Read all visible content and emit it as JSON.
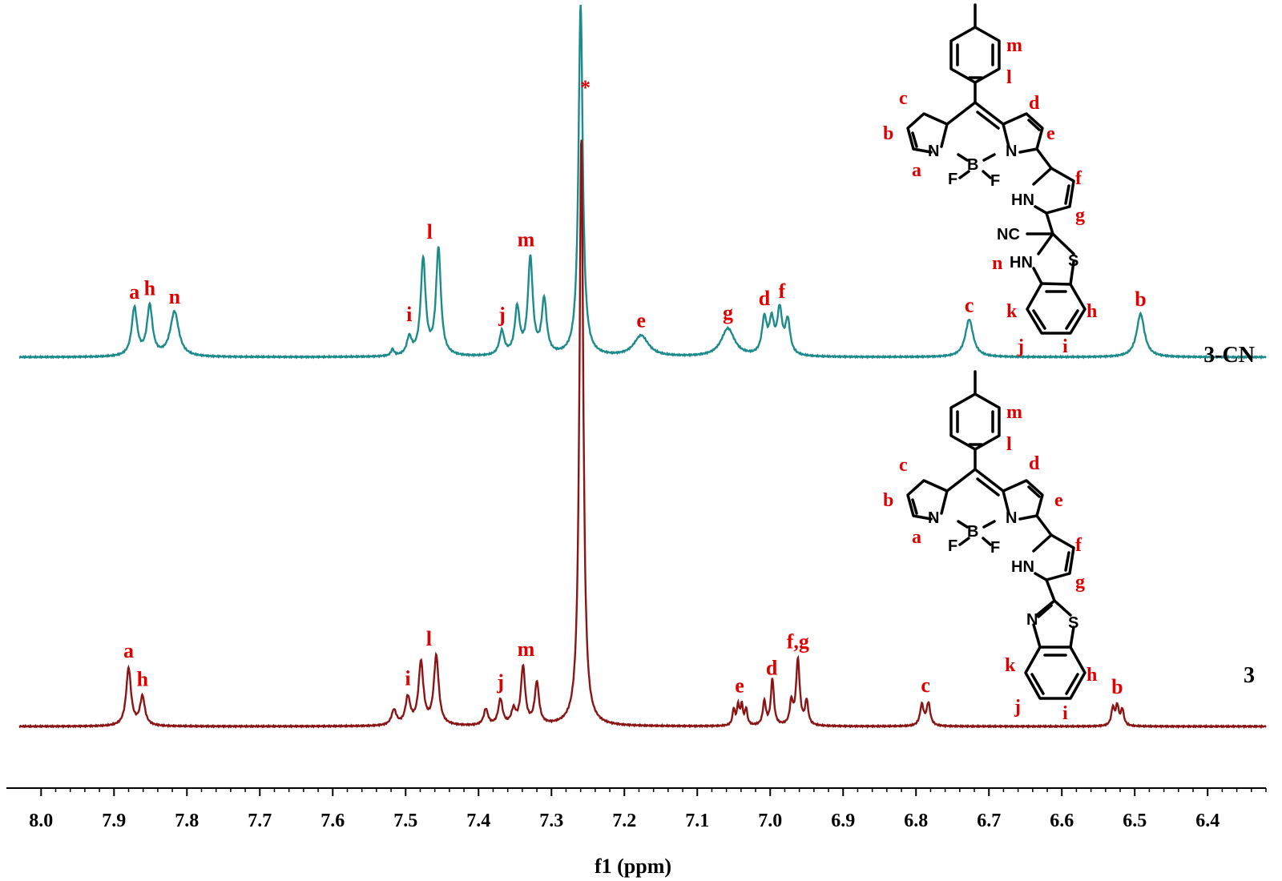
{
  "chart_data": {
    "type": "line",
    "title": "",
    "xlabel": "f1 (ppm)",
    "ylabel": "",
    "xlim": [
      8.03,
      6.32
    ],
    "x_reversed": true,
    "x_ticks": [
      "8.0",
      "7.9",
      "7.8",
      "7.7",
      "7.6",
      "7.5",
      "7.4",
      "7.3",
      "7.2",
      "7.1",
      "7.0",
      "6.9",
      "6.8",
      "6.7",
      "6.6",
      "6.5",
      "6.4"
    ],
    "y_axis_shown": false,
    "grid": false,
    "series": [
      {
        "name": "3-CN",
        "color": "#1d8b8b",
        "peaks": [
          {
            "ppm": 7.872,
            "h": 60,
            "w": 0.0045
          },
          {
            "ppm": 7.851,
            "h": 62,
            "w": 0.0045
          },
          {
            "ppm": 7.817,
            "h": 56,
            "w": 0.007
          },
          {
            "ppm": 7.518,
            "h": 8,
            "w": 0.0025
          },
          {
            "ppm": 7.495,
            "h": 22,
            "w": 0.004
          },
          {
            "ppm": 7.476,
            "h": 120,
            "w": 0.004
          },
          {
            "ppm": 7.455,
            "h": 133,
            "w": 0.004
          },
          {
            "ppm": 7.368,
            "h": 30,
            "w": 0.004
          },
          {
            "ppm": 7.347,
            "h": 58,
            "w": 0.004
          },
          {
            "ppm": 7.329,
            "h": 120,
            "w": 0.004
          },
          {
            "ppm": 7.31,
            "h": 68,
            "w": 0.004
          },
          {
            "ppm": 7.26,
            "h": 440,
            "w": 0.0035
          },
          {
            "ppm": 7.177,
            "h": 26,
            "w": 0.012
          },
          {
            "ppm": 7.058,
            "h": 35,
            "w": 0.011
          },
          {
            "ppm": 7.008,
            "h": 44,
            "w": 0.004
          },
          {
            "ppm": 6.998,
            "h": 40,
            "w": 0.004
          },
          {
            "ppm": 6.987,
            "h": 54,
            "w": 0.004
          },
          {
            "ppm": 6.976,
            "h": 42,
            "w": 0.004
          },
          {
            "ppm": 6.727,
            "h": 47,
            "w": 0.0065
          },
          {
            "ppm": 6.492,
            "h": 54,
            "w": 0.0065
          }
        ],
        "peak_labels": [
          {
            "ppm": 7.872,
            "text": "a"
          },
          {
            "ppm": 7.851,
            "text": "h"
          },
          {
            "ppm": 7.817,
            "text": "n"
          },
          {
            "ppm": 7.495,
            "text": "i"
          },
          {
            "ppm": 7.467,
            "text": "l"
          },
          {
            "ppm": 7.368,
            "text": "j"
          },
          {
            "ppm": 7.335,
            "text": "m"
          },
          {
            "ppm": 7.177,
            "text": "e"
          },
          {
            "ppm": 7.058,
            "text": "g"
          },
          {
            "ppm": 7.008,
            "text": "d"
          },
          {
            "ppm": 6.984,
            "text": "f"
          },
          {
            "ppm": 6.727,
            "text": "c"
          },
          {
            "ppm": 6.492,
            "text": "b"
          }
        ]
      },
      {
        "name": "3",
        "color": "#8b1414",
        "peaks": [
          {
            "ppm": 7.88,
            "h": 72,
            "w": 0.004
          },
          {
            "ppm": 7.861,
            "h": 36,
            "w": 0.004
          },
          {
            "ppm": 7.516,
            "h": 19,
            "w": 0.004
          },
          {
            "ppm": 7.497,
            "h": 34,
            "w": 0.004
          },
          {
            "ppm": 7.479,
            "h": 78,
            "w": 0.004
          },
          {
            "ppm": 7.458,
            "h": 86,
            "w": 0.004
          },
          {
            "ppm": 7.39,
            "h": 20,
            "w": 0.0035
          },
          {
            "ppm": 7.37,
            "h": 32,
            "w": 0.0035
          },
          {
            "ppm": 7.352,
            "h": 18,
            "w": 0.0035
          },
          {
            "ppm": 7.339,
            "h": 72,
            "w": 0.0035
          },
          {
            "ppm": 7.32,
            "h": 52,
            "w": 0.0035
          },
          {
            "ppm": 7.259,
            "h": 735,
            "w": 0.0032
          },
          {
            "ppm": 7.05,
            "h": 20,
            "w": 0.002
          },
          {
            "ppm": 7.044,
            "h": 24,
            "w": 0.002
          },
          {
            "ppm": 7.039,
            "h": 24,
            "w": 0.002
          },
          {
            "ppm": 7.033,
            "h": 20,
            "w": 0.002
          },
          {
            "ppm": 7.008,
            "h": 30,
            "w": 0.0025
          },
          {
            "ppm": 6.997,
            "h": 58,
            "w": 0.0025
          },
          {
            "ppm": 6.971,
            "h": 28,
            "w": 0.0025
          },
          {
            "ppm": 6.962,
            "h": 82,
            "w": 0.003
          },
          {
            "ppm": 6.95,
            "h": 30,
            "w": 0.0025
          },
          {
            "ppm": 6.792,
            "h": 26,
            "w": 0.003
          },
          {
            "ppm": 6.783,
            "h": 28,
            "w": 0.003
          },
          {
            "ppm": 6.53,
            "h": 22,
            "w": 0.0025
          },
          {
            "ppm": 6.524,
            "h": 24,
            "w": 0.0025
          },
          {
            "ppm": 6.517,
            "h": 20,
            "w": 0.0025
          }
        ],
        "peak_labels": [
          {
            "ppm": 7.88,
            "text": "a"
          },
          {
            "ppm": 7.861,
            "text": "h"
          },
          {
            "ppm": 7.497,
            "text": "i"
          },
          {
            "ppm": 7.468,
            "text": "l"
          },
          {
            "ppm": 7.37,
            "text": "j"
          },
          {
            "ppm": 7.335,
            "text": "m"
          },
          {
            "ppm": 7.042,
            "text": "e"
          },
          {
            "ppm": 6.998,
            "text": "d"
          },
          {
            "ppm": 6.962,
            "text": "f,g"
          },
          {
            "ppm": 6.787,
            "text": "c"
          },
          {
            "ppm": 6.524,
            "text": "b"
          }
        ]
      }
    ],
    "annotations": [
      {
        "text": "*",
        "ppm": 7.26,
        "color": "#e00000"
      }
    ]
  },
  "structures": {
    "top": {
      "atoms": {
        "n1": "N",
        "n2": "N",
        "b": "B",
        "f1": "F",
        "f2": "F",
        "hn1": "HN",
        "nc": "NC",
        "hn2": "HN",
        "s": "S"
      },
      "labels": {
        "m": "m",
        "l": "l",
        "c": "c",
        "d": "d",
        "b": "b",
        "e": "e",
        "a": "a",
        "f": "f",
        "g": "g",
        "n": "n",
        "k": "k",
        "h": "h",
        "j": "j",
        "i": "i"
      }
    },
    "bottom": {
      "atoms": {
        "n1": "N",
        "n2": "N",
        "b": "B",
        "f1": "F",
        "f2": "F",
        "hn1": "HN",
        "n3": "N",
        "s": "S"
      },
      "labels": {
        "m": "m",
        "l": "l",
        "c": "c",
        "d": "d",
        "b": "b",
        "e": "e",
        "a": "a",
        "f": "f",
        "g": "g",
        "k": "k",
        "h": "h",
        "j": "j",
        "i": "i"
      }
    }
  }
}
